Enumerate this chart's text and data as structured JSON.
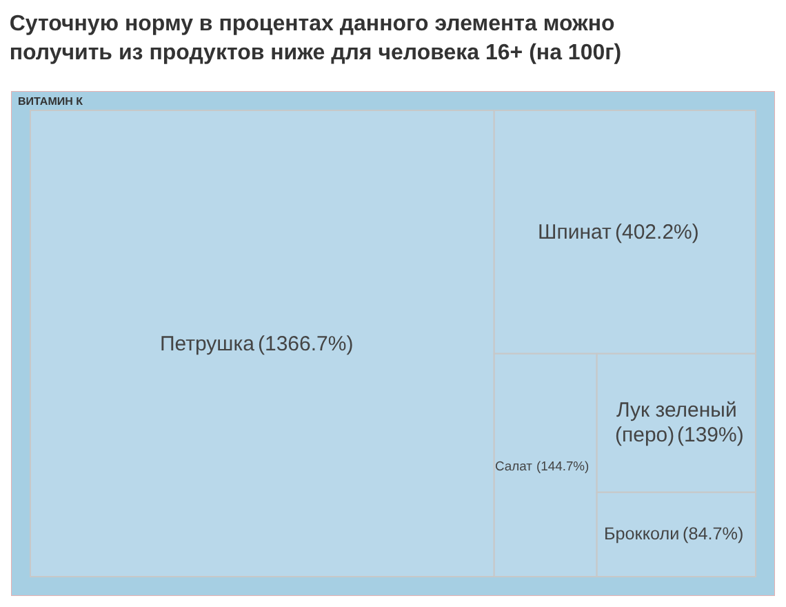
{
  "chart_data": {
    "type": "other",
    "title": "Суточную норму в процентах данного элемента можно\nполучить из продуктов ниже для человека 16+ (на 100г)",
    "annotations": [
      "ВИТАМИН К"
    ],
    "categories": [
      "Петрушка",
      "Шпинат",
      "Салат",
      "Лук зеленый (перо)",
      "Брокколи"
    ],
    "values": [
      1366.7,
      402.2,
      144.7,
      139,
      84.7
    ],
    "value_labels": [
      "(1366.7%)",
      "(402.2%)",
      "(144.7%)",
      "(139%)",
      "(84.7%)"
    ],
    "colors": [
      "#b9d8ea",
      "#b9d8ea",
      "#b9d8ea",
      "#b9d8ea",
      "#b9d8ea"
    ]
  }
}
